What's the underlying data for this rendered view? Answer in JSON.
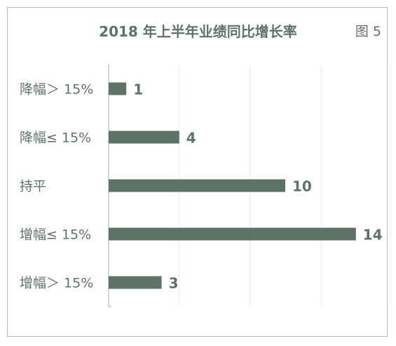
{
  "header": {
    "title": "2018 年上半年业绩同比增长率",
    "figure_label": "图 5"
  },
  "colors": {
    "bar": "#5f7268",
    "text": "#5f7268",
    "axis": "#a9aeab",
    "grid": "#ececec",
    "border": "#b8bcb9"
  },
  "chart_data": {
    "type": "bar",
    "orientation": "horizontal",
    "title": "2018 年上半年业绩同比增长率",
    "categories": [
      "降幅＞ 15%",
      "降幅≤ 15%",
      "持平",
      "增幅≤ 15%",
      "增幅＞ 15%"
    ],
    "values": [
      1,
      4,
      10,
      14,
      3
    ],
    "data_labels": [
      "1",
      "4",
      "10",
      "14",
      "3"
    ],
    "xlim": [
      0,
      16
    ],
    "grid": true,
    "xlabel": "",
    "ylabel": ""
  }
}
